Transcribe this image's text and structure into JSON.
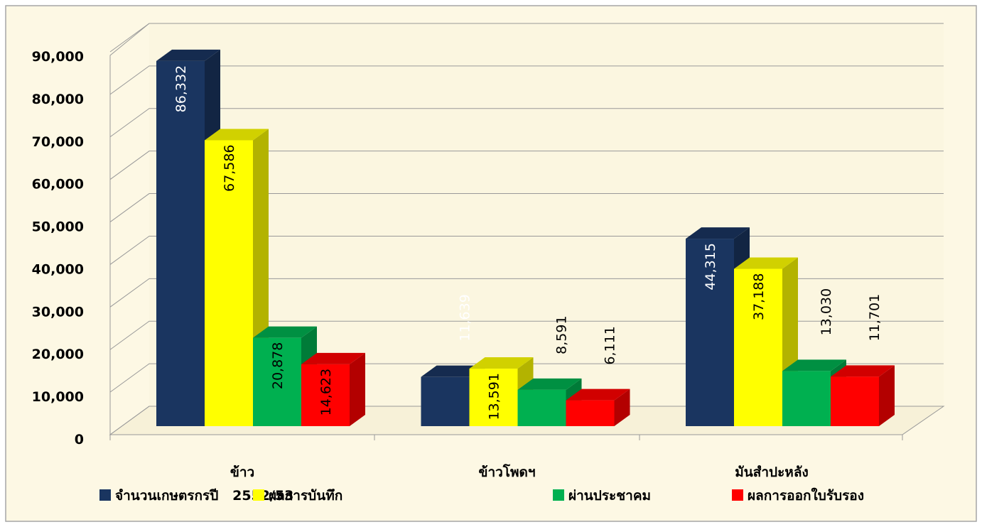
{
  "chart_data": {
    "type": "bar3d",
    "categories": [
      "ข้าว",
      "ข้าวโพดฯ",
      "มันสำปะหลัง"
    ],
    "series": [
      {
        "name": "จำนวนเกษตรกรปี   2552/53",
        "color": "#1a3560",
        "values": [
          86332,
          11639,
          44315
        ],
        "value_labels": [
          "86,332",
          "11,639",
          "44,315"
        ]
      },
      {
        "name": "ผลการบันทึก",
        "color": "#ffff00",
        "values": [
          67586,
          13591,
          37188
        ],
        "value_labels": [
          "67,586",
          "13,591",
          "37,188"
        ]
      },
      {
        "name": "ผ่านประชาคม",
        "color": "#00b050",
        "values": [
          20878,
          8591,
          13030
        ],
        "value_labels": [
          "20,878",
          "8,591",
          "13,030"
        ]
      },
      {
        "name": "ผลการออกใบรับรอง",
        "color": "#ff0000",
        "values": [
          14623,
          6111,
          11701
        ],
        "value_labels": [
          "14,623",
          "6,111",
          "11,701"
        ]
      }
    ],
    "ylim": [
      0,
      90000
    ],
    "yticks": [
      0,
      {
        "value": 10000,
        "label": "10,000"
      },
      {
        "value": 20000,
        "label": "20,000"
      },
      {
        "value": 30000,
        "label": "30,000"
      },
      {
        "value": 40000,
        "label": "40,000"
      },
      {
        "value": 50000,
        "label": "50,000"
      },
      {
        "value": 60000,
        "label": "60,000"
      },
      {
        "value": 70000,
        "label": "70,000"
      },
      {
        "value": 80000,
        "label": "80,000"
      },
      {
        "value": 90000,
        "label": "90,000"
      }
    ],
    "grid": true,
    "legend": "bottom"
  }
}
